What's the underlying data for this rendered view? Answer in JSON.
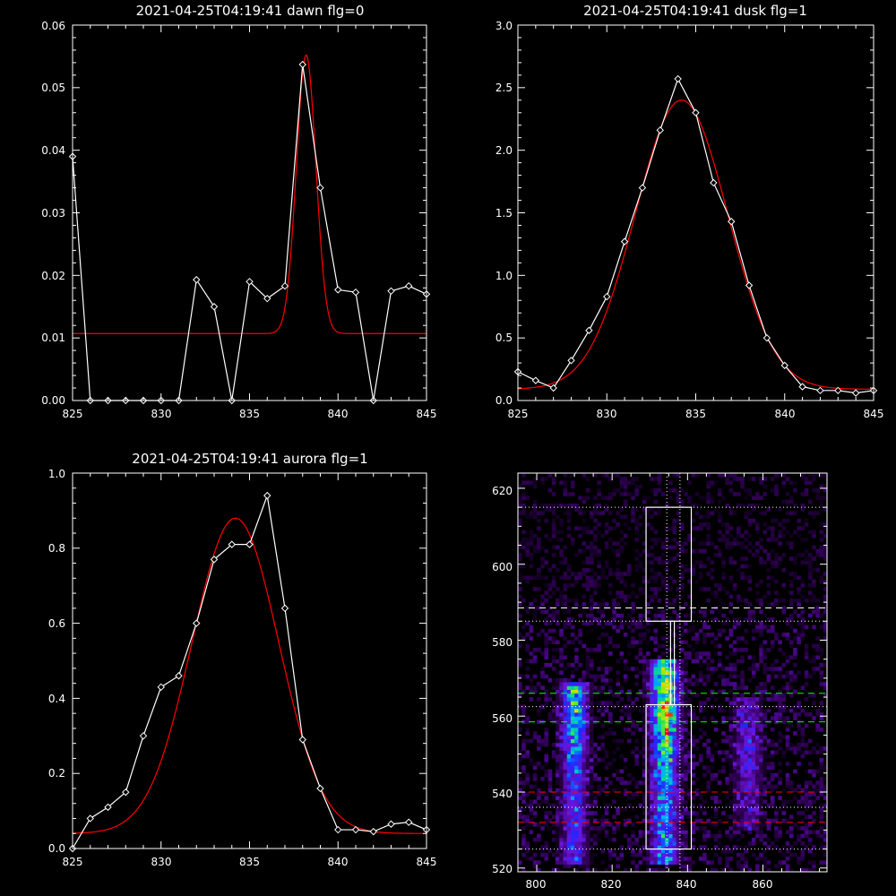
{
  "colors": {
    "background": "#000000",
    "axis": "#ffffff",
    "data": "#ffffff",
    "fit": "#ff0000",
    "dashed_green": "#00ff00",
    "dashed_red": "#ff0000"
  },
  "chart_data": [
    {
      "type": "line",
      "title": "2021-04-25T04:19:41 dawn flg=0",
      "xlim": [
        825,
        845
      ],
      "ylim": [
        0,
        0.06
      ],
      "xticks": [
        "825",
        "830",
        "835",
        "840",
        "845"
      ],
      "yticks": [
        "0.00",
        "0.01",
        "0.02",
        "0.03",
        "0.04",
        "0.05",
        "0.06"
      ],
      "data_x": [
        825,
        826,
        827,
        828,
        829,
        830,
        831,
        832,
        833,
        834,
        835,
        836,
        837,
        838,
        839,
        840,
        841,
        842,
        843,
        844,
        845
      ],
      "data_y": [
        0.039,
        0.0,
        0.0,
        0.0,
        0.0,
        0.0,
        0.0,
        0.0193,
        0.015,
        0.0,
        0.019,
        0.0163,
        0.0183,
        0.0537,
        0.034,
        0.0177,
        0.0173,
        0.0,
        0.0175,
        0.0183,
        0.017
      ],
      "fit": {
        "model": "gaussian",
        "baseline": 0.0107,
        "amplitude": 0.0445,
        "center": 838.2,
        "sigma": 0.55
      }
    },
    {
      "type": "line",
      "title": "2021-04-25T04:19:41 dusk flg=1",
      "xlim": [
        825,
        845
      ],
      "ylim": [
        0,
        3.0
      ],
      "xticks": [
        "825",
        "830",
        "835",
        "840",
        "845"
      ],
      "yticks": [
        "0.0",
        "0.5",
        "1.0",
        "1.5",
        "2.0",
        "2.5",
        "3.0"
      ],
      "data_x": [
        825,
        826,
        827,
        828,
        829,
        830,
        831,
        832,
        833,
        834,
        835,
        836,
        837,
        838,
        839,
        840,
        841,
        842,
        843,
        844,
        845
      ],
      "data_y": [
        0.23,
        0.16,
        0.1,
        0.32,
        0.56,
        0.83,
        1.27,
        1.7,
        2.16,
        2.57,
        2.3,
        1.74,
        1.43,
        0.92,
        0.5,
        0.28,
        0.11,
        0.08,
        0.08,
        0.06,
        0.08
      ],
      "fit": {
        "model": "gaussian",
        "baseline": 0.09,
        "amplitude": 2.31,
        "center": 834.2,
        "sigma": 2.6
      }
    },
    {
      "type": "line",
      "title": "2021-04-25T04:19:41 aurora flg=1",
      "xlim": [
        825,
        845
      ],
      "ylim": [
        0,
        1.0
      ],
      "xticks": [
        "825",
        "830",
        "835",
        "840",
        "845"
      ],
      "yticks": [
        "0.0",
        "0.2",
        "0.4",
        "0.6",
        "0.8",
        "1.0"
      ],
      "data_x": [
        825,
        826,
        827,
        828,
        829,
        830,
        831,
        832,
        833,
        834,
        835,
        836,
        837,
        838,
        839,
        840,
        841,
        842,
        843,
        844,
        845
      ],
      "data_y": [
        0.0,
        0.08,
        0.11,
        0.15,
        0.3,
        0.43,
        0.46,
        0.6,
        0.77,
        0.81,
        0.81,
        0.94,
        0.64,
        0.29,
        0.16,
        0.05,
        0.05,
        0.045,
        0.065,
        0.07,
        0.05
      ],
      "fit": {
        "model": "gaussian",
        "baseline": 0.04,
        "amplitude": 0.84,
        "center": 834.2,
        "sigma": 2.45
      }
    },
    {
      "type": "heatmap",
      "title": "",
      "xlim": [
        795,
        877
      ],
      "ylim": [
        519,
        624
      ],
      "xticks": [
        "800",
        "820",
        "840",
        "860"
      ],
      "yticks": [
        "520",
        "540",
        "560",
        "580",
        "600",
        "620"
      ],
      "bands": [
        {
          "x_center": 810,
          "x_width": 2.2,
          "y_min": 521,
          "y_max": 569,
          "peak_y": 562,
          "strength": 0.68
        },
        {
          "x_center": 834,
          "x_width": 2.4,
          "y_min": 521,
          "y_max": 575,
          "peak_y": 563,
          "strength": 0.95
        },
        {
          "x_center": 856,
          "x_width": 2.4,
          "y_min": 530,
          "y_max": 565,
          "peak_y": 552,
          "strength": 0.3
        }
      ],
      "boxes": [
        {
          "x1": 829,
          "x2": 841,
          "y1": 585,
          "y2": 615
        },
        {
          "x1": 829,
          "x2": 841,
          "y1": 525,
          "y2": 563
        },
        {
          "x1": 835.5,
          "x2": 836.5,
          "y1": 563,
          "y2": 585
        }
      ],
      "hlines": [
        {
          "y": 615,
          "style": "dotted",
          "color": "#ffffff"
        },
        {
          "y": 588.5,
          "style": "dashed",
          "color": "#ffffff"
        },
        {
          "y": 585,
          "style": "dotted",
          "color": "#ffffff"
        },
        {
          "y": 566,
          "style": "dashed",
          "color": "#00ff00"
        },
        {
          "y": 562.5,
          "style": "dotted",
          "color": "#ffffff"
        },
        {
          "y": 558.5,
          "style": "dashed",
          "color": "#00ff00"
        },
        {
          "y": 540,
          "style": "dashed",
          "color": "#ff0000"
        },
        {
          "y": 536,
          "style": "dotted",
          "color": "#ffffff"
        },
        {
          "y": 532,
          "style": "dashed",
          "color": "#ff0000"
        },
        {
          "y": 525,
          "style": "dotted",
          "color": "#ffffff"
        }
      ],
      "vlines": [
        {
          "x": 834.5,
          "style": "dotted",
          "color": "#ffffff"
        },
        {
          "x": 838,
          "style": "dotted",
          "color": "#ffffff"
        }
      ]
    }
  ]
}
